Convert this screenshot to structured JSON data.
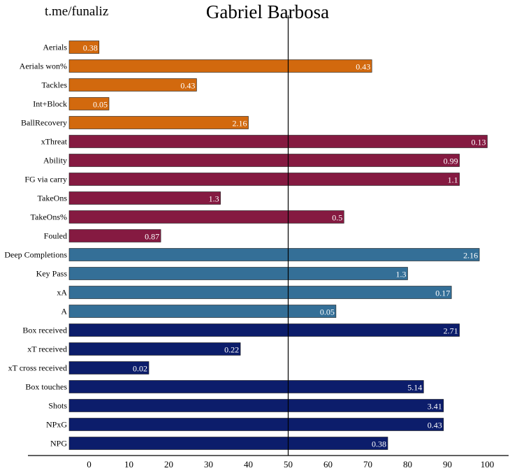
{
  "watermark": "t.me/funaliz",
  "chart_data": {
    "type": "bar",
    "orientation": "horizontal",
    "title": "Gabriel Barbosa",
    "xlabel": "",
    "ylabel": "",
    "xlim": [
      -5,
      101
    ],
    "xticks": [
      0,
      10,
      20,
      30,
      40,
      50,
      60,
      70,
      80,
      90,
      100
    ],
    "reference_line": 50,
    "grid": false,
    "legend": "none",
    "group_colors": {
      "defending": "#d2690e",
      "dribbling": "#851a41",
      "passing": "#346f97",
      "shooting": "#0c1d6b"
    },
    "bars": [
      {
        "category": "Aerials",
        "value": 2.5,
        "label": "0.38",
        "group": "defending"
      },
      {
        "category": "Aerials won%",
        "value": 71,
        "label": "0.43",
        "group": "defending"
      },
      {
        "category": "Tackles",
        "value": 27,
        "label": "0.43",
        "group": "defending"
      },
      {
        "category": "Int+Block",
        "value": 5,
        "label": "0.05",
        "group": "defending"
      },
      {
        "category": "BallRecovery",
        "value": 40,
        "label": "2.16",
        "group": "defending"
      },
      {
        "category": "xThreat",
        "value": 100,
        "label": "0.13",
        "group": "dribbling"
      },
      {
        "category": "Ability",
        "value": 93,
        "label": "0.99",
        "group": "dribbling"
      },
      {
        "category": "FG via carry",
        "value": 93,
        "label": "1.1",
        "group": "dribbling"
      },
      {
        "category": "TakeOns",
        "value": 33,
        "label": "1.3",
        "group": "dribbling"
      },
      {
        "category": "TakeOns%",
        "value": 64,
        "label": "0.5",
        "group": "dribbling"
      },
      {
        "category": "Fouled",
        "value": 18,
        "label": "0.87",
        "group": "dribbling"
      },
      {
        "category": "Deep Completions",
        "value": 98,
        "label": "2.16",
        "group": "passing"
      },
      {
        "category": "Key Pass",
        "value": 80,
        "label": "1.3",
        "group": "passing"
      },
      {
        "category": "xA",
        "value": 91,
        "label": "0.17",
        "group": "passing"
      },
      {
        "category": "A",
        "value": 62,
        "label": "0.05",
        "group": "passing"
      },
      {
        "category": "Box received",
        "value": 93,
        "label": "2.71",
        "group": "shooting"
      },
      {
        "category": "xT received",
        "value": 38,
        "label": "0.22",
        "group": "shooting"
      },
      {
        "category": "xT cross received",
        "value": 15,
        "label": "0.02",
        "group": "shooting"
      },
      {
        "category": "Box touches",
        "value": 84,
        "label": "5.14",
        "group": "shooting"
      },
      {
        "category": "Shots",
        "value": 89,
        "label": "3.41",
        "group": "shooting"
      },
      {
        "category": "NPxG",
        "value": 89,
        "label": "0.43",
        "group": "shooting"
      },
      {
        "category": "NPG",
        "value": 75,
        "label": "0.38",
        "group": "shooting"
      }
    ]
  }
}
